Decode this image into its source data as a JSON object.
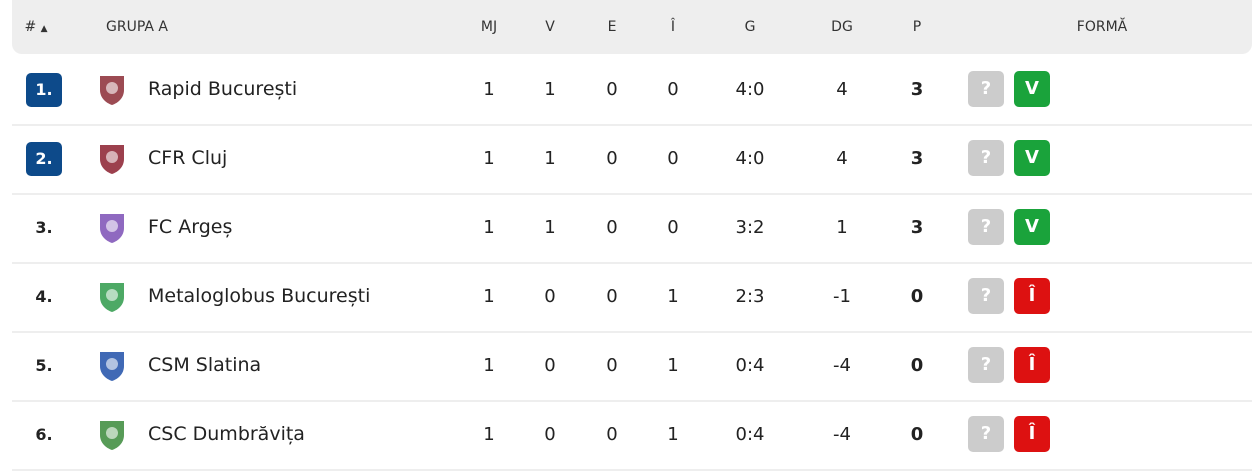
{
  "header": {
    "rank": "#",
    "sort_icon": "triangle-up",
    "group": "GRUPA A",
    "mj": "MJ",
    "v": "V",
    "e": "E",
    "i": "Î",
    "g": "G",
    "dg": "DG",
    "p": "P",
    "form": "FORMĂ"
  },
  "colors": {
    "qualified": "#0d4a8a",
    "win": "#1aa33b",
    "loss": "#dd1111",
    "unknown": "#cccccc"
  },
  "rows": [
    {
      "rank": "1.",
      "qualified": true,
      "team": "Rapid București",
      "logo_color": "#8b2b35",
      "mj": "1",
      "v": "1",
      "e": "0",
      "i": "0",
      "g": "4:0",
      "dg": "4",
      "p": "3",
      "form": [
        "?",
        "V"
      ]
    },
    {
      "rank": "2.",
      "qualified": true,
      "team": "CFR Cluj",
      "logo_color": "#8b1e2e",
      "mj": "1",
      "v": "1",
      "e": "0",
      "i": "0",
      "g": "4:0",
      "dg": "4",
      "p": "3",
      "form": [
        "?",
        "V"
      ]
    },
    {
      "rank": "3.",
      "qualified": false,
      "team": "FC Argeș",
      "logo_color": "#7b4fb5",
      "mj": "1",
      "v": "1",
      "e": "0",
      "i": "0",
      "g": "3:2",
      "dg": "1",
      "p": "3",
      "form": [
        "?",
        "V"
      ]
    },
    {
      "rank": "4.",
      "qualified": false,
      "team": "Metaloglobus București",
      "logo_color": "#2e9a4a",
      "mj": "1",
      "v": "0",
      "e": "0",
      "i": "1",
      "g": "2:3",
      "dg": "-1",
      "p": "0",
      "form": [
        "?",
        "Î"
      ]
    },
    {
      "rank": "5.",
      "qualified": false,
      "team": "CSM Slatina",
      "logo_color": "#1f4fa8",
      "mj": "1",
      "v": "0",
      "e": "0",
      "i": "1",
      "g": "0:4",
      "dg": "-4",
      "p": "0",
      "form": [
        "?",
        "Î"
      ]
    },
    {
      "rank": "6.",
      "qualified": false,
      "team": "CSC Dumbrăvița",
      "logo_color": "#3a8a3a",
      "mj": "1",
      "v": "0",
      "e": "0",
      "i": "1",
      "g": "0:4",
      "dg": "-4",
      "p": "0",
      "form": [
        "?",
        "Î"
      ]
    }
  ]
}
